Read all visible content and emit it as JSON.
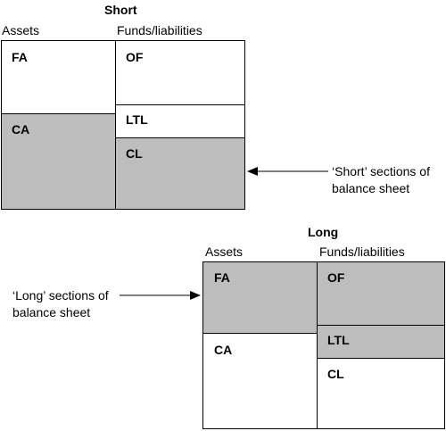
{
  "short_diagram": {
    "title": "Short",
    "assets_label": "Assets",
    "funds_label": "Funds/liabilities",
    "assets": {
      "fa": "FA",
      "ca": "CA"
    },
    "funds": {
      "of": "OF",
      "ltl": "LTL",
      "cl": "CL"
    },
    "annotation": {
      "line1": "‘Short’ sections of",
      "line2": "balance sheet"
    },
    "shaded_color": "#bdbdbd"
  },
  "long_diagram": {
    "title": "Long",
    "assets_label": "Assets",
    "funds_label": "Funds/liabilities",
    "assets": {
      "fa": "FA",
      "ca": "CA"
    },
    "funds": {
      "of": "OF",
      "ltl": "LTL",
      "cl": "CL"
    },
    "annotation": {
      "line1": "‘Long’ sections of",
      "line2": "balance sheet"
    },
    "shaded_color": "#bdbdbd"
  }
}
